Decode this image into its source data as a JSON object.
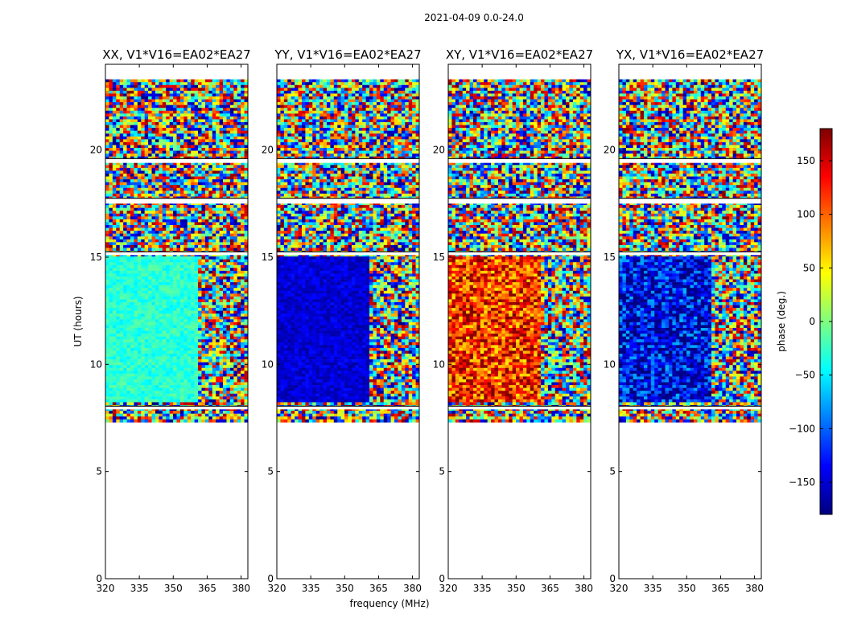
{
  "suptitle": "2021-04-09 0.0-24.0",
  "xlabel": "frequency (MHz)",
  "ylabel": "UT (hours)",
  "colorbar": {
    "label": "phase (deg.)",
    "range": [
      -180,
      180
    ],
    "ticks": [
      150,
      100,
      50,
      0,
      -50,
      -100,
      -150
    ],
    "tick_labels": [
      "150",
      "100",
      "50",
      "0",
      "−50",
      "−100",
      "−150"
    ],
    "cmap": [
      "#00007f",
      "#0000ff",
      "#007fff",
      "#00ffff",
      "#7fff7f",
      "#ffff00",
      "#ff7f00",
      "#ff0000",
      "#7f0000"
    ]
  },
  "chart_data": [
    {
      "type": "heatmap",
      "title": "XX, V1*V16=EA02*EA27",
      "xlim": [
        320,
        383
      ],
      "ylim": [
        0,
        24
      ],
      "xticks": [
        320,
        335,
        350,
        365,
        380
      ],
      "yticks": [
        0,
        5,
        10,
        15,
        20
      ],
      "data_ut_range": [
        7.3,
        23.3
      ],
      "flagged_ut_bands": [
        [
          7.9,
          8.05
        ],
        [
          17.5,
          17.75
        ],
        [
          19.4,
          19.6
        ],
        [
          15.1,
          15.25
        ]
      ],
      "bright_ut_range": [
        8.2,
        15.0
      ],
      "bright_phase_deg": -30
    },
    {
      "type": "heatmap",
      "title": "YY, V1*V16=EA02*EA27",
      "xlim": [
        320,
        383
      ],
      "ylim": [
        0,
        24
      ],
      "xticks": [
        320,
        335,
        350,
        365,
        380
      ],
      "yticks": [
        0,
        5,
        10,
        15,
        20
      ],
      "data_ut_range": [
        7.3,
        23.3
      ],
      "flagged_ut_bands": [
        [
          7.9,
          8.05
        ],
        [
          17.5,
          17.75
        ],
        [
          19.4,
          19.6
        ],
        [
          15.1,
          15.25
        ]
      ],
      "bright_ut_range": [
        8.2,
        15.0
      ],
      "bright_phase_deg": -150
    },
    {
      "type": "heatmap",
      "title": "XY, V1*V16=EA02*EA27",
      "xlim": [
        320,
        383
      ],
      "ylim": [
        0,
        24
      ],
      "xticks": [
        320,
        335,
        350,
        365,
        380
      ],
      "yticks": [
        0,
        5,
        10,
        15,
        20
      ],
      "data_ut_range": [
        7.3,
        23.3
      ],
      "flagged_ut_bands": [
        [
          7.9,
          8.05
        ],
        [
          17.5,
          17.75
        ],
        [
          19.4,
          19.6
        ],
        [
          15.1,
          15.25
        ]
      ],
      "bright_ut_range": [
        8.2,
        15.0
      ],
      "bright_phase_deg": 120
    },
    {
      "type": "heatmap",
      "title": "YX, V1*V16=EA02*EA27",
      "xlim": [
        320,
        383
      ],
      "ylim": [
        0,
        24
      ],
      "xticks": [
        320,
        335,
        350,
        365,
        380
      ],
      "yticks": [
        0,
        5,
        10,
        15,
        20
      ],
      "data_ut_range": [
        7.3,
        23.3
      ],
      "flagged_ut_bands": [
        [
          7.9,
          8.05
        ],
        [
          17.5,
          17.75
        ],
        [
          19.4,
          19.6
        ],
        [
          15.1,
          15.25
        ]
      ],
      "bright_ut_range": [
        8.2,
        15.0
      ],
      "bright_phase_deg": -140
    }
  ]
}
